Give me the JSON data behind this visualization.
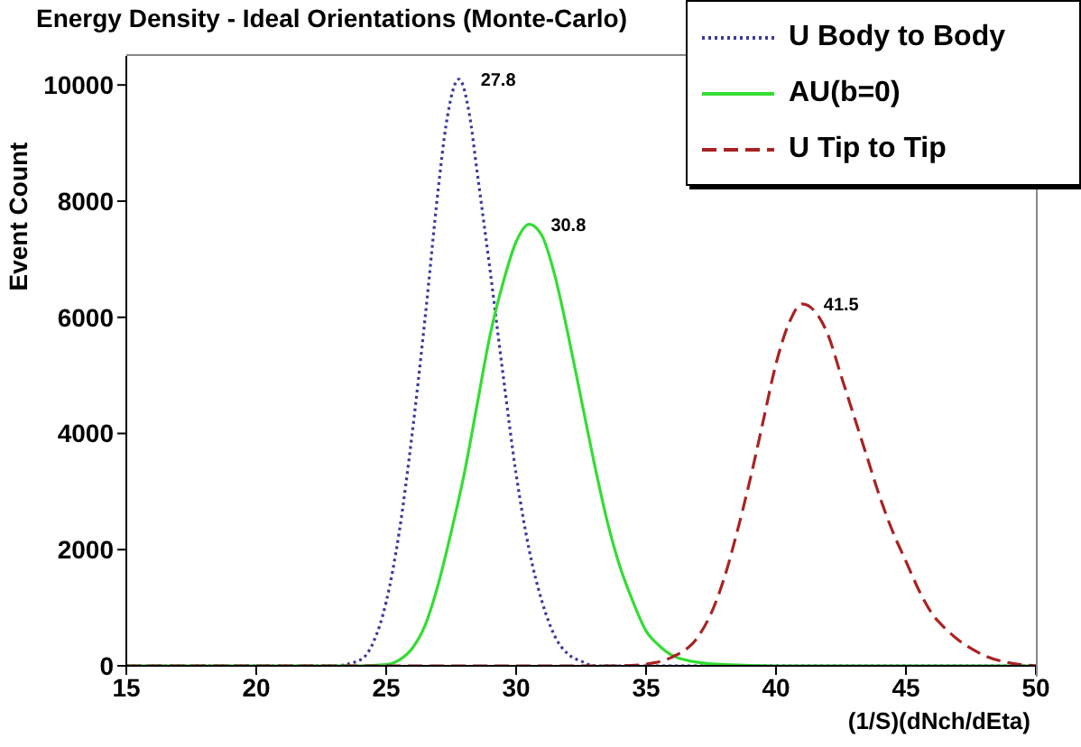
{
  "chart_data": {
    "type": "line",
    "title": "Energy Density - Ideal Orientations (Monte-Carlo)",
    "xlabel": "(1/S)(dNch/dEta)",
    "ylabel": "Event Count",
    "xlim": [
      15,
      50
    ],
    "xticks": [
      15,
      20,
      25,
      30,
      35,
      40,
      45,
      50
    ],
    "ylim": [
      0,
      10500
    ],
    "yticks": [
      0,
      2000,
      4000,
      6000,
      8000,
      10000
    ],
    "legend": "top right",
    "marker": "none",
    "series": [
      {
        "name": "U Body to Body",
        "color": "#3a3a9a",
        "line_style": "dotted",
        "x": [
          15,
          20,
          23,
          24,
          24.5,
          25,
          25.5,
          26,
          26.5,
          27,
          27.3,
          27.8,
          28.2,
          28.5,
          29,
          29.5,
          30,
          30.5,
          31,
          31.5,
          32,
          32.5,
          33,
          34,
          40,
          50
        ],
        "values": [
          0,
          0,
          0,
          100,
          400,
          1100,
          2300,
          4000,
          6000,
          8200,
          9300,
          10100,
          9500,
          8500,
          6800,
          5000,
          3300,
          2000,
          1100,
          500,
          200,
          80,
          0,
          0,
          0,
          0
        ]
      },
      {
        "name": "AU(b=0)",
        "color": "#33dd33",
        "line_style": "solid",
        "x": [
          15,
          24,
          25,
          25.5,
          26,
          26.5,
          27,
          27.5,
          28,
          28.5,
          29,
          29.5,
          30,
          30.5,
          31,
          31.5,
          32,
          32.5,
          33,
          33.5,
          34,
          34.5,
          35,
          35.5,
          36,
          37,
          38,
          40,
          50
        ],
        "values": [
          0,
          0,
          20,
          100,
          300,
          700,
          1400,
          2300,
          3300,
          4500,
          5700,
          6600,
          7300,
          7600,
          7400,
          6700,
          5700,
          4600,
          3500,
          2500,
          1700,
          1100,
          600,
          350,
          180,
          60,
          20,
          0,
          0
        ]
      },
      {
        "name": "U Tip to Tip",
        "color": "#aa2222",
        "line_style": "dashed",
        "x": [
          15,
          34,
          35,
          36,
          37,
          37.5,
          38,
          38.5,
          39,
          39.5,
          40,
          40.5,
          41,
          41.5,
          42,
          42.5,
          43,
          43.5,
          44,
          44.5,
          45,
          45.5,
          46,
          46.5,
          47,
          47.5,
          48,
          49,
          50
        ],
        "values": [
          0,
          0,
          30,
          150,
          500,
          900,
          1500,
          2300,
          3200,
          4200,
          5200,
          5900,
          6230,
          6100,
          5700,
          5000,
          4300,
          3600,
          2900,
          2300,
          1800,
          1300,
          900,
          650,
          450,
          300,
          180,
          50,
          0
        ]
      }
    ],
    "annotations": [
      {
        "text": "27.8",
        "x": 27.8,
        "y": 10100
      },
      {
        "text": "30.8",
        "x": 30.5,
        "y": 7600
      },
      {
        "text": "41.5",
        "x": 41,
        "y": 6230
      }
    ]
  }
}
